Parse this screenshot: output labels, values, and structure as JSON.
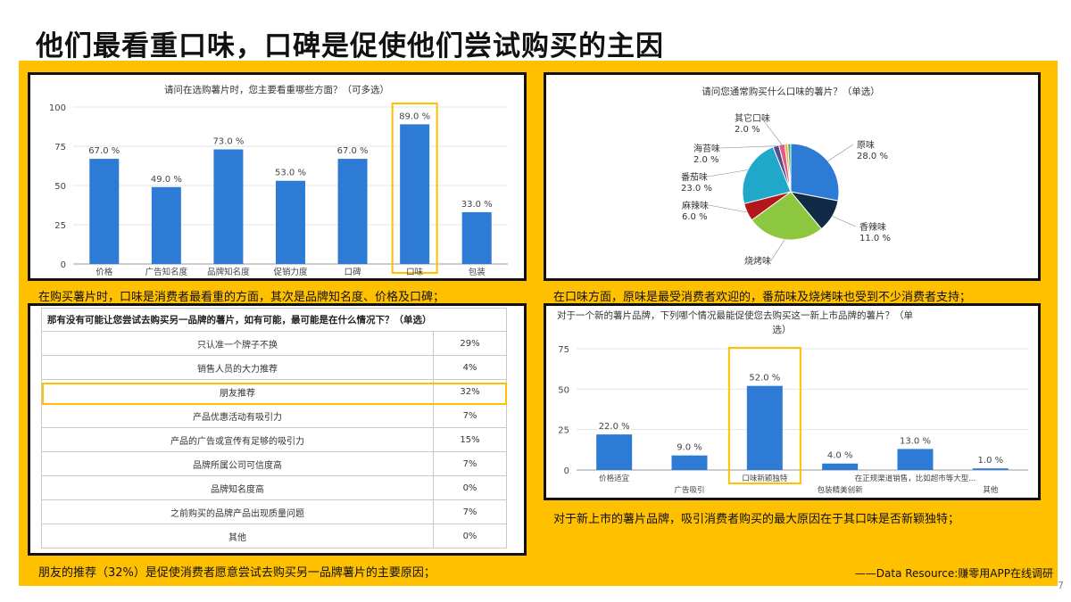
{
  "page": {
    "title": "他们最看重口味，口碑是促使他们尝试购买的主因",
    "page_number": "7",
    "source": "——Data Resource:赚零用APP在线调研",
    "colors": {
      "accent": "#FFC000",
      "bar": "#2E7BD6"
    }
  },
  "captions": {
    "c1": "在购买薯片时，口味是消费者最看重的方面，其次是品牌知名度、价格及口碑；",
    "c2": "在口味方面，原味是最受消费者欢迎的，番茄味及烧烤味也受到不少消费者支持；",
    "c3": "朋友的推荐（32%）是促使消费者愿意尝试去购买另一品牌薯片的主要原因；",
    "c4": "对于新上市的薯片品牌，吸引消费者购买的最大原因在于其口味是否新颖独特；"
  },
  "chart_data": [
    {
      "type": "bar",
      "title": "请问在选购薯片时，您主要看重哪些方面？（可多选）",
      "categories": [
        "价格",
        "广告知名度",
        "品牌知名度",
        "促销力度",
        "口碑",
        "口味",
        "包装"
      ],
      "values": [
        67.0,
        49.0,
        73.0,
        53.0,
        67.0,
        89.0,
        33.0
      ],
      "labels": [
        "67.0 %",
        "49.0 %",
        "73.0 %",
        "53.0 %",
        "67.0 %",
        "89.0 %",
        "33.0 %"
      ],
      "yticks": [
        0,
        25,
        50,
        75,
        100
      ],
      "ylim": [
        0,
        100
      ],
      "highlight": "口味"
    },
    {
      "type": "pie",
      "title": "请问您通常购买什么口味的薯片？（单选）",
      "slices": [
        {
          "name": "原味",
          "value": 28.0,
          "label": "28.0 %",
          "color": "#2E7BD6"
        },
        {
          "name": "香辣味",
          "value": 11.0,
          "label": "11.0 %",
          "color": "#102A45"
        },
        {
          "name": "烧烤味",
          "value": 26.0,
          "label": "",
          "color": "#8DC63F"
        },
        {
          "name": "麻辣味",
          "value": 6.0,
          "label": "6.0 %",
          "color": "#B2181B"
        },
        {
          "name": "番茄味",
          "value": 23.0,
          "label": "23.0 %",
          "color": "#1FA8C9"
        },
        {
          "name": "海苔味",
          "value": 2.0,
          "label": "2.0 %",
          "color": "#5B4A8A"
        },
        {
          "name": "其它口味",
          "value": 2.0,
          "label": "2.0 %",
          "color": "#E45A84"
        },
        {
          "name": "",
          "value": 1.0,
          "label": "",
          "color": "#F2A93B"
        },
        {
          "name": "",
          "value": 1.0,
          "label": "",
          "color": "#3CB371"
        }
      ]
    },
    {
      "type": "table",
      "title": "那有没有可能让您尝试去购买另一品牌的薯片，如有可能，最可能是在什么情况下？（单选）",
      "rows": [
        {
          "label": "只认准一个牌子不换",
          "value": "29%"
        },
        {
          "label": "销售人员的大力推荐",
          "value": "4%"
        },
        {
          "label": "朋友推荐",
          "value": "32%"
        },
        {
          "label": "产品优惠活动有吸引力",
          "value": "7%"
        },
        {
          "label": "产品的广告或宣传有足够的吸引力",
          "value": "15%"
        },
        {
          "label": "品牌所属公司可信度高",
          "value": "7%"
        },
        {
          "label": "品牌知名度高",
          "value": "0%"
        },
        {
          "label": "之前购买的品牌产品出现质量问题",
          "value": "7%"
        },
        {
          "label": "其他",
          "value": "0%"
        }
      ],
      "highlight": "朋友推荐"
    },
    {
      "type": "bar",
      "title_line1": "对于一个新的薯片品牌，下列哪个情况最能促使您去购买这一新上市品牌的薯片？（单",
      "title_line2": "选）",
      "categories": [
        "价格适宜",
        "广告吸引",
        "口味新颖独特",
        "包装精美创新",
        "在正规渠道销售，比如超市等大型...",
        "其他"
      ],
      "values": [
        22.0,
        9.0,
        52.0,
        4.0,
        13.0,
        1.0
      ],
      "labels": [
        "22.0 %",
        "9.0 %",
        "52.0 %",
        "4.0 %",
        "13.0 %",
        "1.0 %"
      ],
      "yticks": [
        0,
        25,
        50,
        75
      ],
      "ylim": [
        0,
        75
      ],
      "highlight": "口味新颖独特"
    }
  ]
}
